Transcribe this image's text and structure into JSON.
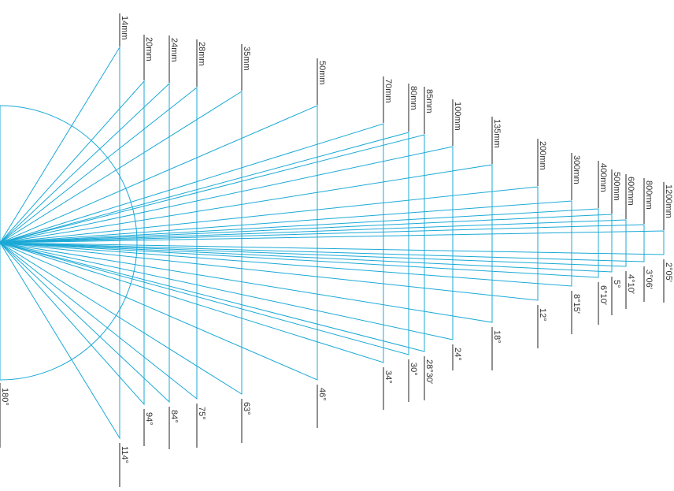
{
  "colors": {
    "rays": "#1ba9d6",
    "ticks": "#222222",
    "text": "#333333",
    "background": "#ffffff"
  },
  "lenses": [
    {
      "focal": "14mm",
      "angle": "114°"
    },
    {
      "focal": "20mm",
      "angle": "94°"
    },
    {
      "focal": "24mm",
      "angle": "84°"
    },
    {
      "focal": "28mm",
      "angle": "75°"
    },
    {
      "focal": "35mm",
      "angle": "63°"
    },
    {
      "focal": "50mm",
      "angle": "46°"
    },
    {
      "focal": "70mm",
      "angle": "34°"
    },
    {
      "focal": "80mm",
      "angle": "30°"
    },
    {
      "focal": "85mm",
      "angle": "28°30′"
    },
    {
      "focal": "100mm",
      "angle": "24°"
    },
    {
      "focal": "135mm",
      "angle": "18°"
    },
    {
      "focal": "200mm",
      "angle": "12°"
    },
    {
      "focal": "300mm",
      "angle": "8°15′"
    },
    {
      "focal": "400mm",
      "angle": "6°10′"
    },
    {
      "focal": "500mm",
      "angle": "5°"
    },
    {
      "focal": "600mm",
      "angle": "4°10′"
    },
    {
      "focal": "800mm",
      "angle": "3°06′"
    },
    {
      "focal": "1200mm",
      "angle": "2°05′"
    }
  ],
  "reference": {
    "angle": "180°"
  }
}
